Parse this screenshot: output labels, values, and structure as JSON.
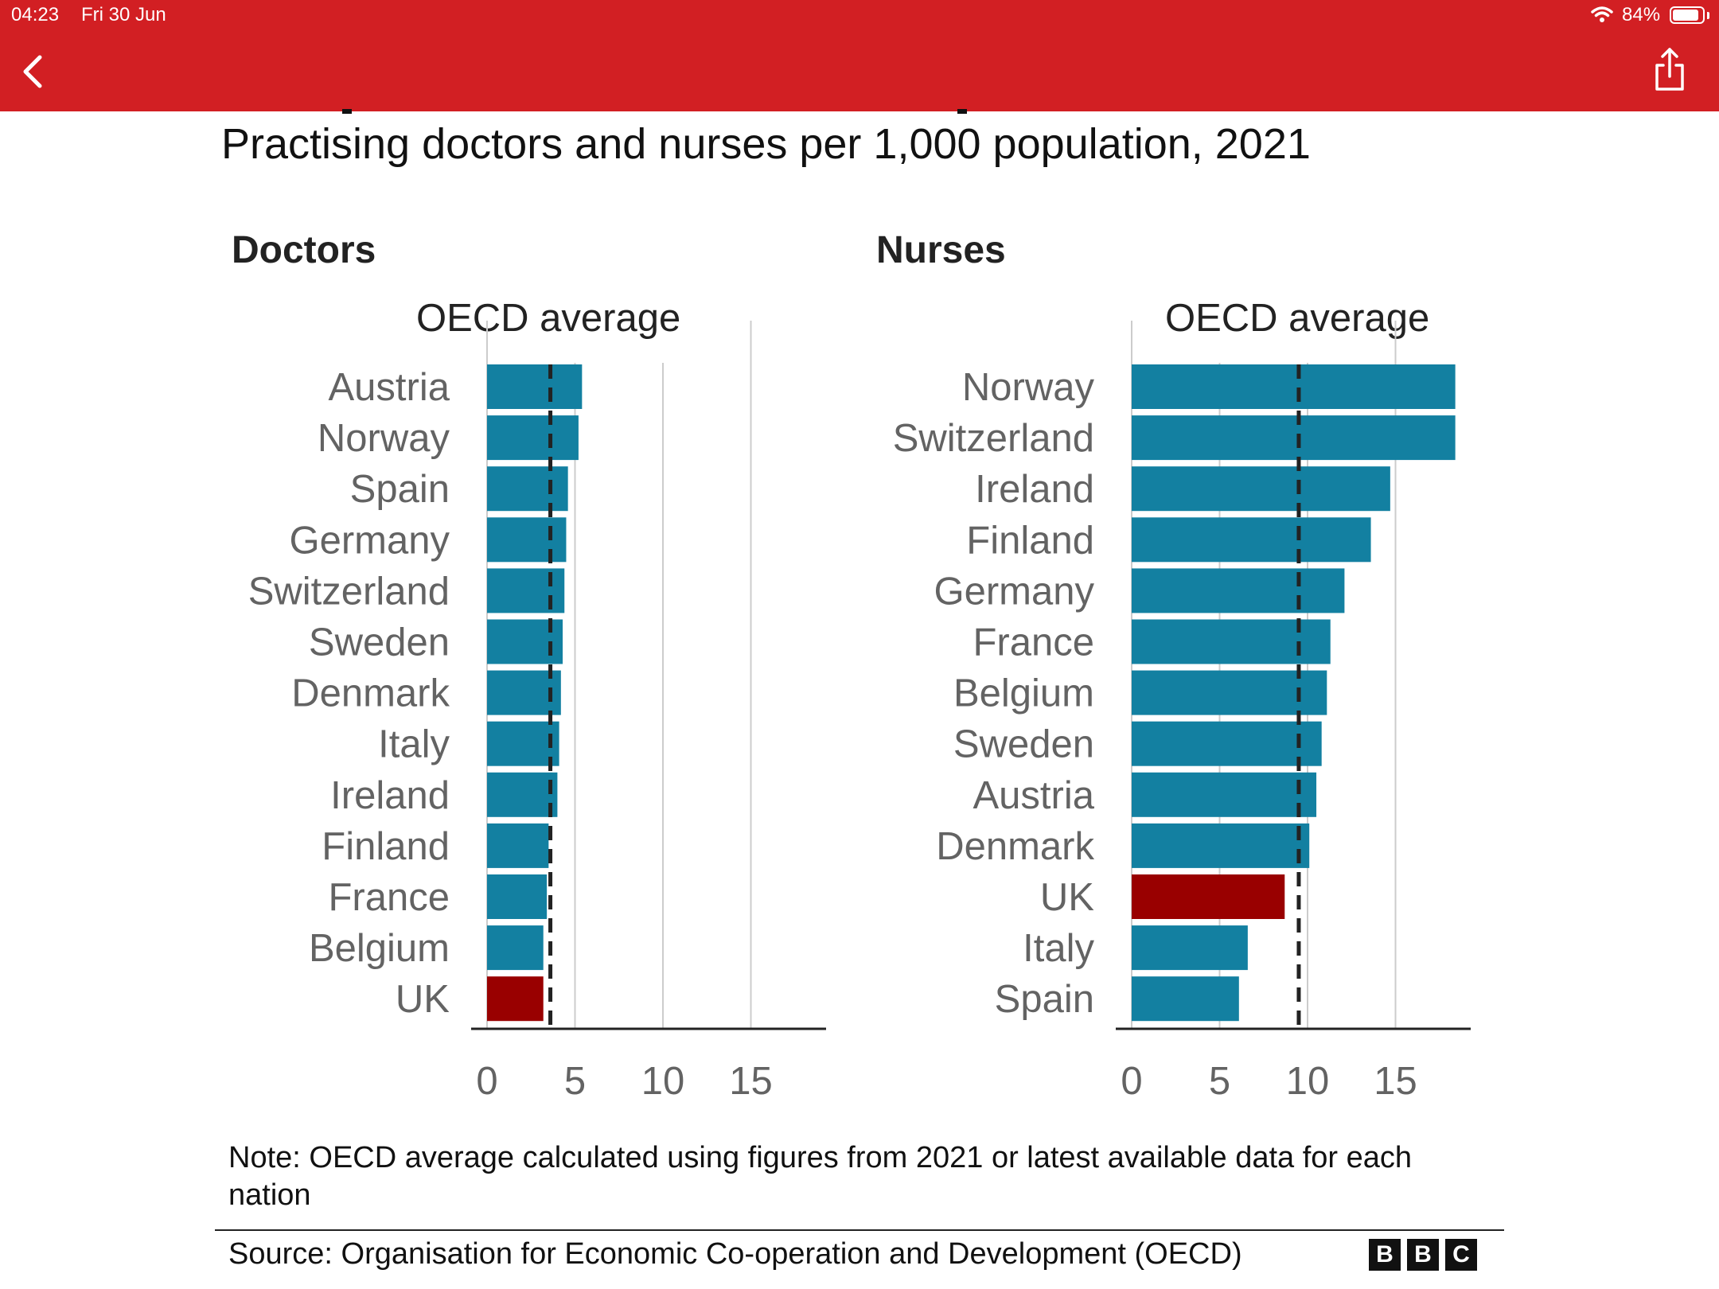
{
  "status_bar": {
    "time": "04:23",
    "date": "Fri 30 Jun",
    "battery": "84%"
  },
  "colors": {
    "app_bar": "#d21f23",
    "bar": "#1380a1",
    "highlight_bar": "#990000",
    "gridline": "#cccccc",
    "label": "#636363"
  },
  "chart": {
    "title": "Practising doctors and nurses per 1,000 population, 2021",
    "note": "Note: OECD average calculated using figures from 2021 or latest available data for each nation",
    "source": "Source: Organisation for Economic Co-operation and Development (OECD)",
    "logo": [
      "B",
      "B",
      "C"
    ]
  },
  "chart_data": [
    {
      "type": "bar",
      "orientation": "horizontal",
      "title": "Doctors",
      "categories": [
        "Austria",
        "Norway",
        "Spain",
        "Germany",
        "Switzerland",
        "Sweden",
        "Denmark",
        "Italy",
        "Ireland",
        "Finland",
        "France",
        "Belgium",
        "UK"
      ],
      "values": [
        5.4,
        5.2,
        4.6,
        4.5,
        4.4,
        4.3,
        4.2,
        4.1,
        4.0,
        3.5,
        3.4,
        3.2,
        3.2
      ],
      "highlight": "UK",
      "reference_line": {
        "label": "OECD average",
        "value": 3.6
      },
      "xticks": [
        0,
        5,
        10,
        15
      ],
      "xlim": [
        0,
        19
      ],
      "grid": true
    },
    {
      "type": "bar",
      "orientation": "horizontal",
      "title": "Nurses",
      "categories": [
        "Norway",
        "Switzerland",
        "Ireland",
        "Finland",
        "Germany",
        "France",
        "Belgium",
        "Sweden",
        "Austria",
        "Denmark",
        "UK",
        "Italy",
        "Spain"
      ],
      "values": [
        18.4,
        18.4,
        14.7,
        13.6,
        12.1,
        11.3,
        11.1,
        10.8,
        10.5,
        10.1,
        8.7,
        6.6,
        6.1
      ],
      "highlight": "UK",
      "reference_line": {
        "label": "OECD average",
        "value": 9.5
      },
      "xticks": [
        0,
        5,
        10,
        15
      ],
      "xlim": [
        0,
        19
      ],
      "grid": true
    }
  ]
}
